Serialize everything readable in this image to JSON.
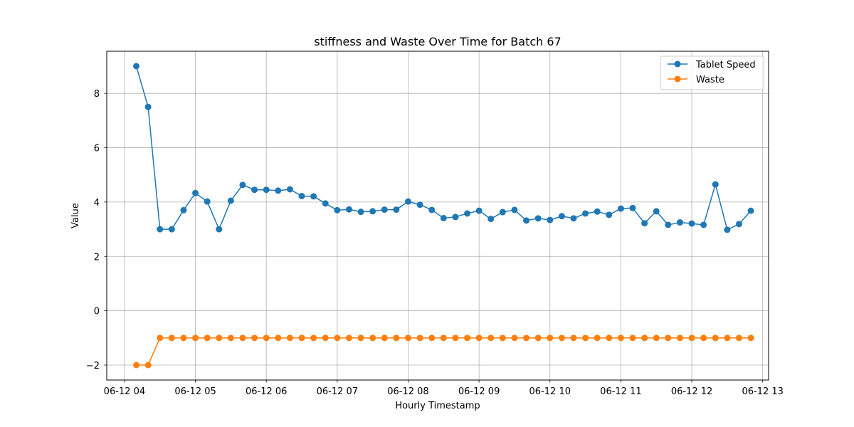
{
  "chart_data": {
    "type": "line",
    "title": "stiffness and Waste Over Time for Batch 67",
    "xlabel": "Hourly Timestamp",
    "ylabel": "Value",
    "x": [
      "06-12 04:10",
      "06-12 04:20",
      "06-12 04:30",
      "06-12 04:40",
      "06-12 04:50",
      "06-12 05:00",
      "06-12 05:10",
      "06-12 05:20",
      "06-12 05:30",
      "06-12 05:40",
      "06-12 05:50",
      "06-12 06:00",
      "06-12 06:10",
      "06-12 06:20",
      "06-12 06:30",
      "06-12 06:40",
      "06-12 06:50",
      "06-12 07:00",
      "06-12 07:10",
      "06-12 07:20",
      "06-12 07:30",
      "06-12 07:40",
      "06-12 07:50",
      "06-12 08:00",
      "06-12 08:10",
      "06-12 08:20",
      "06-12 08:30",
      "06-12 08:40",
      "06-12 08:50",
      "06-12 09:00",
      "06-12 09:10",
      "06-12 09:20",
      "06-12 09:30",
      "06-12 09:40",
      "06-12 09:50",
      "06-12 10:00",
      "06-12 10:10",
      "06-12 10:20",
      "06-12 10:30",
      "06-12 10:40",
      "06-12 10:50",
      "06-12 11:00",
      "06-12 11:10",
      "06-12 11:20",
      "06-12 11:30",
      "06-12 11:40",
      "06-12 11:50",
      "06-12 12:00",
      "06-12 12:10",
      "06-12 12:20",
      "06-12 12:30",
      "06-12 12:40",
      "06-12 12:50"
    ],
    "series": [
      {
        "name": "Tablet Speed",
        "color": "#1f77b4",
        "values": [
          9.0,
          7.5,
          3.0,
          3.0,
          3.7,
          4.33,
          4.02,
          3.0,
          4.05,
          4.63,
          4.45,
          4.45,
          4.42,
          4.47,
          4.22,
          4.21,
          3.95,
          3.7,
          3.73,
          3.64,
          3.66,
          3.72,
          3.72,
          4.02,
          3.9,
          3.71,
          3.41,
          3.45,
          3.58,
          3.68,
          3.38,
          3.63,
          3.71,
          3.32,
          3.4,
          3.34,
          3.48,
          3.4,
          3.58,
          3.65,
          3.53,
          3.76,
          3.78,
          3.22,
          3.66,
          3.16,
          3.25,
          3.21,
          3.16,
          4.65,
          2.98,
          3.19,
          3.68
        ]
      },
      {
        "name": "Waste",
        "color": "#ff7f0e",
        "values": [
          -2,
          -2,
          -1,
          -1,
          -1,
          -1,
          -1,
          -1,
          -1,
          -1,
          -1,
          -1,
          -1,
          -1,
          -1,
          -1,
          -1,
          -1,
          -1,
          -1,
          -1,
          -1,
          -1,
          -1,
          -1,
          -1,
          -1,
          -1,
          -1,
          -1,
          -1,
          -1,
          -1,
          -1,
          -1,
          -1,
          -1,
          -1,
          -1,
          -1,
          -1,
          -1,
          -1,
          -1,
          -1,
          -1,
          -1,
          -1,
          -1,
          -1,
          -1,
          -1,
          -1
        ]
      }
    ],
    "x_ticks": [
      "06-12 04",
      "06-12 05",
      "06-12 06",
      "06-12 07",
      "06-12 08",
      "06-12 09",
      "06-12 10",
      "06-12 11",
      "06-12 12",
      "06-12 13"
    ],
    "y_ticks": [
      -2,
      0,
      2,
      4,
      6,
      8
    ],
    "xlim": [
      "06-12 03:45",
      "06-12 13:05"
    ],
    "ylim": [
      -2.55,
      9.55
    ],
    "grid": true,
    "legend_position": "top-right"
  }
}
